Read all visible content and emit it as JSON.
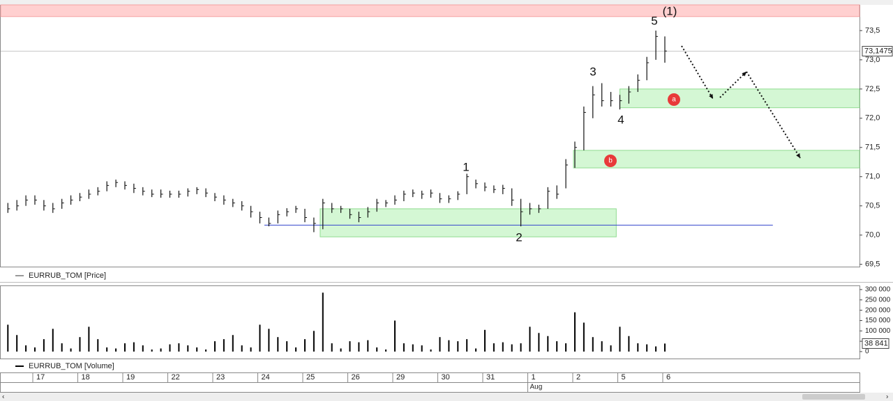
{
  "chart_data": {
    "type": "ohlc",
    "price_legend": "EURRUB_TOM [Price]",
    "volume_legend": "EURRUB_TOM [Volume]",
    "xlim": [
      -0.775,
      18.326
    ],
    "xticks": [
      {
        "value": 0,
        "label": "17"
      },
      {
        "value": 1,
        "label": "18"
      },
      {
        "value": 2,
        "label": "19"
      },
      {
        "value": 3,
        "label": "22"
      },
      {
        "value": 4,
        "label": "23"
      },
      {
        "value": 5,
        "label": "24"
      },
      {
        "value": 6,
        "label": "25"
      },
      {
        "value": 7,
        "label": "26"
      },
      {
        "value": 8,
        "label": "29"
      },
      {
        "value": 9,
        "label": "30"
      },
      {
        "value": 10,
        "label": "31"
      },
      {
        "value": 11,
        "label": "1"
      },
      {
        "value": 12,
        "label": "2"
      },
      {
        "value": 13,
        "label": "5"
      },
      {
        "value": 14,
        "label": "6"
      }
    ],
    "month": {
      "value": 11,
      "label": "Aug"
    },
    "ylim": [
      69.46,
      73.94
    ],
    "yticks": [
      {
        "value": 69.5,
        "label": "69,5"
      },
      {
        "value": 70.0,
        "label": "70,0"
      },
      {
        "value": 70.5,
        "label": "70,5"
      },
      {
        "value": 71.0,
        "label": "71,0"
      },
      {
        "value": 71.5,
        "label": "71,5"
      },
      {
        "value": 72.0,
        "label": "72,0"
      },
      {
        "value": 72.5,
        "label": "72,5"
      },
      {
        "value": 73.0,
        "label": "73,0"
      },
      {
        "value": 73.5,
        "label": "73,5"
      }
    ],
    "last_price": {
      "value": 73.1475,
      "label": "73,1475"
    },
    "x": [
      -0.6,
      -0.4,
      -0.2,
      0,
      0.2,
      0.4,
      0.6,
      0.8,
      1.0,
      1.2,
      1.4,
      1.6,
      1.8,
      2.0,
      2.2,
      2.4,
      2.6,
      2.8,
      3.0,
      3.2,
      3.4,
      3.6,
      3.8,
      4.0,
      4.2,
      4.4,
      4.6,
      4.8,
      5.0,
      5.2,
      5.4,
      5.6,
      5.8,
      6.0,
      6.2,
      6.4,
      6.6,
      6.8,
      7.0,
      7.2,
      7.4,
      7.6,
      7.8,
      8.0,
      8.2,
      8.4,
      8.6,
      8.8,
      9.0,
      9.2,
      9.4,
      9.6,
      9.8,
      10.0,
      10.2,
      10.4,
      10.6,
      10.8,
      11.0,
      11.2,
      11.4,
      11.6,
      11.8,
      12.0,
      12.2,
      12.4,
      12.6,
      12.8,
      13.0,
      13.2,
      13.4,
      13.6,
      13.8,
      14.0
    ],
    "high": [
      70.55,
      70.6,
      70.68,
      70.68,
      70.6,
      70.55,
      70.62,
      70.68,
      70.72,
      70.78,
      70.82,
      70.92,
      70.95,
      70.92,
      70.88,
      70.82,
      70.78,
      70.78,
      70.76,
      70.76,
      70.8,
      70.82,
      70.8,
      70.72,
      70.68,
      70.62,
      70.58,
      70.5,
      70.4,
      70.3,
      70.42,
      70.46,
      70.5,
      70.45,
      70.3,
      70.62,
      70.55,
      70.5,
      70.45,
      70.4,
      70.48,
      70.62,
      70.6,
      70.68,
      70.76,
      70.78,
      70.76,
      70.78,
      70.72,
      70.68,
      70.75,
      71.05,
      70.95,
      70.9,
      70.85,
      70.86,
      70.8,
      70.62,
      70.55,
      70.52,
      70.82,
      70.85,
      71.3,
      71.6,
      72.2,
      72.55,
      72.6,
      72.45,
      72.4,
      72.55,
      72.75,
      73.05,
      73.5,
      73.4
    ],
    "low": [
      70.38,
      70.42,
      70.5,
      70.52,
      70.42,
      70.38,
      70.45,
      70.52,
      70.58,
      70.62,
      70.68,
      70.75,
      70.82,
      70.78,
      70.72,
      70.68,
      70.65,
      70.64,
      70.64,
      70.64,
      70.66,
      70.7,
      70.65,
      70.58,
      70.52,
      70.48,
      70.42,
      70.3,
      70.2,
      70.15,
      70.2,
      70.32,
      70.38,
      70.22,
      70.05,
      70.1,
      70.38,
      70.38,
      70.28,
      70.22,
      70.3,
      70.4,
      70.48,
      70.52,
      70.58,
      70.65,
      70.62,
      70.64,
      70.55,
      70.55,
      70.6,
      70.7,
      70.8,
      70.75,
      70.72,
      70.7,
      70.5,
      70.15,
      70.35,
      70.38,
      70.45,
      70.62,
      70.8,
      71.15,
      71.45,
      72.0,
      72.2,
      72.2,
      72.15,
      72.25,
      72.45,
      72.65,
      73.0,
      72.95
    ],
    "close": [
      70.45,
      70.5,
      70.6,
      70.6,
      70.5,
      70.45,
      70.55,
      70.6,
      70.65,
      70.7,
      70.75,
      70.85,
      70.9,
      70.85,
      70.8,
      70.75,
      70.7,
      70.7,
      70.7,
      70.7,
      70.75,
      70.78,
      70.72,
      70.65,
      70.6,
      70.55,
      70.5,
      70.4,
      70.3,
      70.2,
      70.35,
      70.4,
      70.45,
      70.3,
      70.2,
      70.55,
      70.45,
      70.45,
      70.35,
      70.3,
      70.4,
      70.55,
      70.55,
      70.6,
      70.7,
      70.72,
      70.7,
      70.72,
      70.62,
      70.62,
      70.7,
      71.0,
      70.88,
      70.82,
      70.78,
      70.8,
      70.6,
      70.4,
      70.45,
      70.45,
      70.75,
      70.7,
      71.2,
      71.5,
      72.1,
      72.4,
      72.3,
      72.3,
      72.3,
      72.45,
      72.65,
      72.95,
      73.4,
      73.15
    ],
    "volume": [
      130000,
      80000,
      30000,
      20000,
      60000,
      110000,
      40000,
      15000,
      70000,
      120000,
      60000,
      20000,
      15000,
      40000,
      45000,
      30000,
      10000,
      15000,
      35000,
      40000,
      30000,
      20000,
      10000,
      50000,
      60000,
      80000,
      30000,
      20000,
      130000,
      110000,
      70000,
      50000,
      20000,
      60000,
      100000,
      285000,
      40000,
      15000,
      50000,
      45000,
      55000,
      20000,
      10000,
      150000,
      40000,
      35000,
      30000,
      10000,
      70000,
      55000,
      50000,
      60000,
      15000,
      105000,
      40000,
      45000,
      35000,
      40000,
      120000,
      90000,
      75000,
      50000,
      40000,
      190000,
      140000,
      70000,
      50000,
      30000,
      120000,
      75000,
      40000,
      35000,
      25000,
      38841
    ],
    "vlim": [
      -33700,
      320000
    ],
    "vticks": [
      0,
      {
        "value": 50000,
        "label": "50 000"
      },
      {
        "value": 100000,
        "label": "100 000"
      },
      {
        "value": 150000,
        "label": "150 000"
      },
      {
        "value": 200000,
        "label": "200 000"
      },
      {
        "value": 250000,
        "label": "250 000"
      },
      {
        "value": 300000,
        "label": "300 000"
      }
    ],
    "last_volume": {
      "value": 38841,
      "label": "38 841"
    },
    "resistance_band": [
      73.74,
      73.94
    ],
    "zones": [
      {
        "low": 69.97,
        "high": 70.45,
        "from": 6.34,
        "to": 12.92
      },
      {
        "low": 72.18,
        "high": 72.5,
        "from": 13.0,
        "to": 18.326
      },
      {
        "low": 71.15,
        "high": 71.45,
        "from": 11.97,
        "to": 18.326
      }
    ],
    "support": {
      "value": 70.17,
      "from": 5.1,
      "to": 16.4
    },
    "waves": [
      "(1)",
      "5",
      "3",
      "4",
      "1",
      "2"
    ],
    "markers": [
      "a",
      "b"
    ]
  }
}
